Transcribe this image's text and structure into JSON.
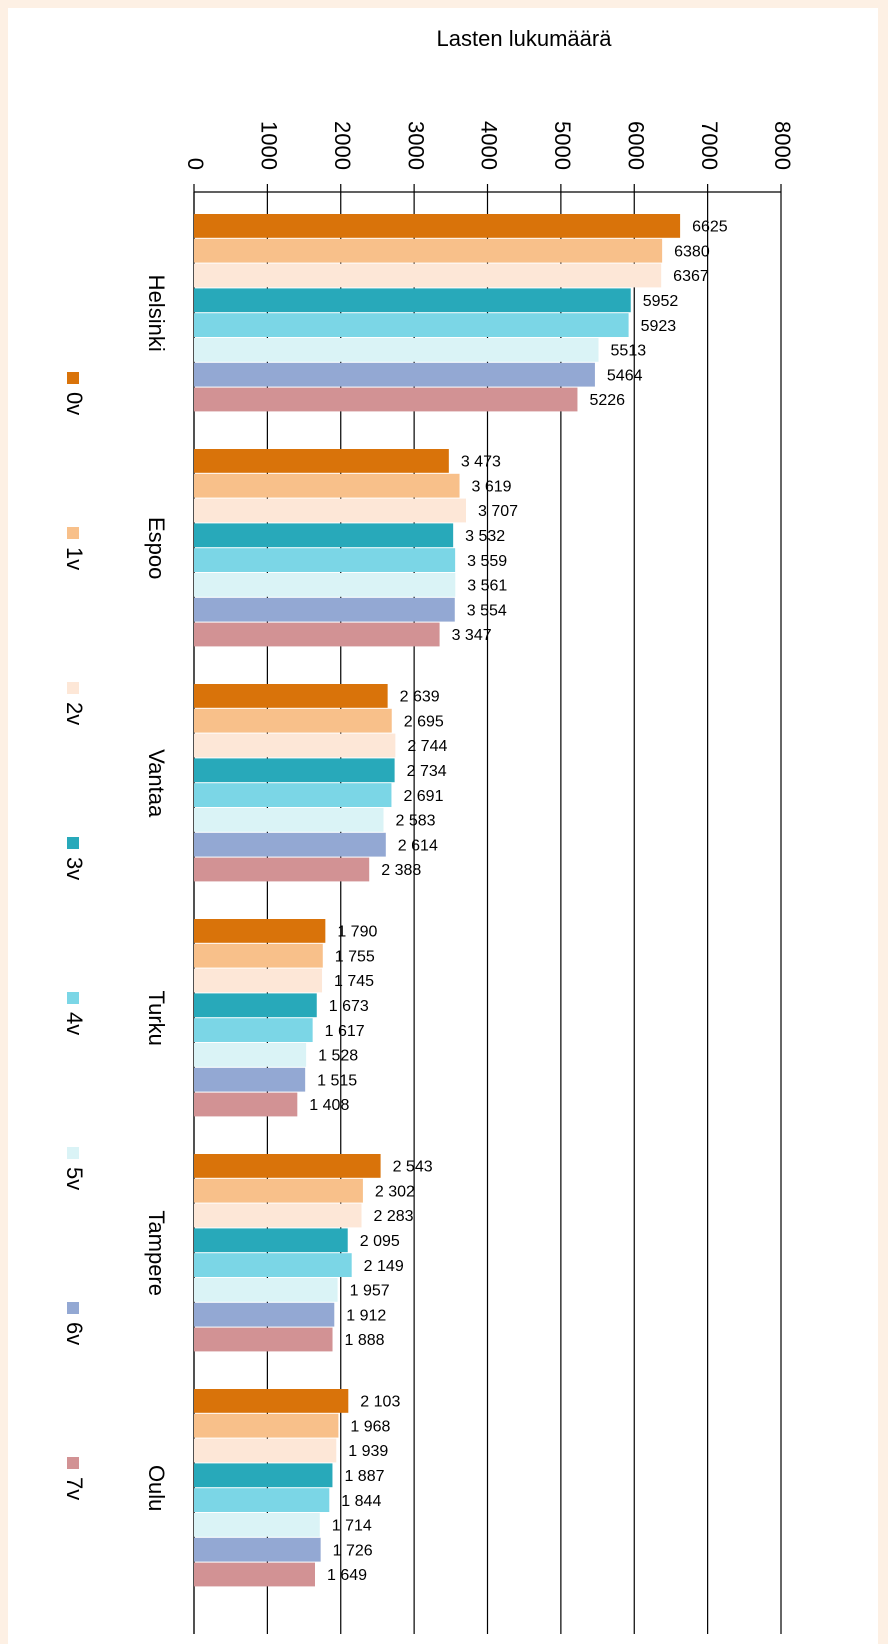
{
  "chart_data": {
    "type": "bar",
    "orientation": "horizontal",
    "title": "Lasten lukumäärä",
    "categories": [
      "Helsinki",
      "Espoo",
      "Vantaa",
      "Turku",
      "Tampere",
      "Oulu"
    ],
    "xlim": [
      0,
      8000
    ],
    "xticks": [
      0,
      1000,
      2000,
      3000,
      4000,
      5000,
      6000,
      7000,
      8000
    ],
    "grid": true,
    "series": [
      {
        "name": "0v",
        "color": "#d9730a",
        "values": [
          6625,
          3473,
          2639,
          1790,
          2543,
          2103
        ],
        "value_labels": [
          "6625",
          "3 473",
          "2 639",
          "1 790",
          "2 543",
          "2 103"
        ]
      },
      {
        "name": "1v",
        "color": "#f8c08a",
        "values": [
          6380,
          3619,
          2695,
          1755,
          2302,
          1968
        ],
        "value_labels": [
          "6380",
          "3 619",
          "2 695",
          "1 755",
          "2 302",
          "1 968"
        ]
      },
      {
        "name": "2v",
        "color": "#fde7d7",
        "values": [
          6367,
          3707,
          2744,
          1745,
          2283,
          1939
        ],
        "value_labels": [
          "6367",
          "3 707",
          "2 744",
          "1 745",
          "2 283",
          "1 939"
        ]
      },
      {
        "name": "3v",
        "color": "#28a9ba",
        "values": [
          5952,
          3532,
          2734,
          1673,
          2095,
          1887
        ],
        "value_labels": [
          "5952",
          "3 532",
          "2 734",
          "1 673",
          "2 095",
          "1 887"
        ]
      },
      {
        "name": "4v",
        "color": "#7bd6e6",
        "values": [
          5923,
          3559,
          2691,
          1617,
          2149,
          1844
        ],
        "value_labels": [
          "5923",
          "3 559",
          "2 691",
          "1 617",
          "2 149",
          "1 844"
        ]
      },
      {
        "name": "5v",
        "color": "#daf3f6",
        "values": [
          5513,
          3561,
          2583,
          1528,
          1957,
          1714
        ],
        "value_labels": [
          "5513",
          "3 561",
          "2 583",
          "1 528",
          "1 957",
          "1 714"
        ]
      },
      {
        "name": "6v",
        "color": "#93a8d3",
        "values": [
          5464,
          3554,
          2614,
          1515,
          1912,
          1726
        ],
        "value_labels": [
          "5464",
          "3 554",
          "2 614",
          "1 515",
          "1 912",
          "1 726"
        ]
      },
      {
        "name": "7v",
        "color": "#d29294",
        "values": [
          5226,
          3347,
          2388,
          1408,
          1888,
          1649
        ],
        "value_labels": [
          "5226",
          "3 347",
          "2 388",
          "1 408",
          "1 888",
          "1 649"
        ]
      }
    ]
  }
}
